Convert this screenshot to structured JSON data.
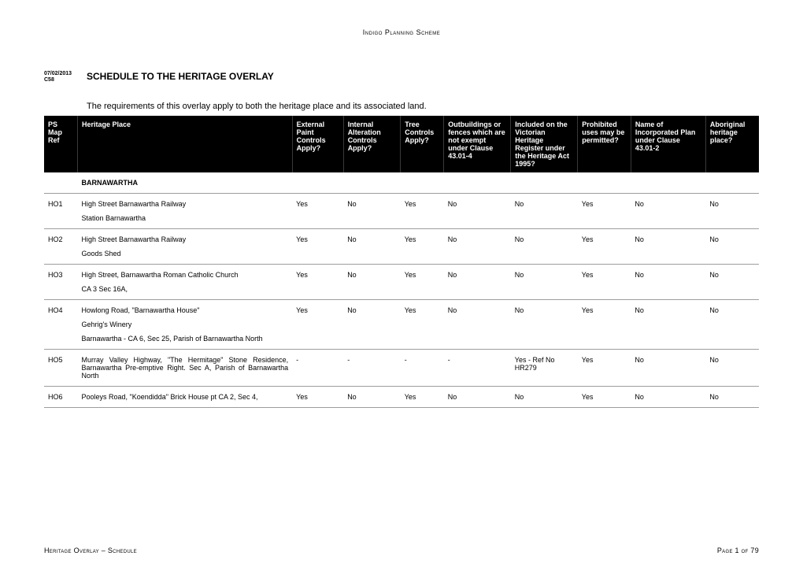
{
  "header": "Indigo Planning Scheme",
  "meta": {
    "date": "07/02/2013",
    "code": "C58"
  },
  "title": "SCHEDULE TO THE HERITAGE OVERLAY",
  "intro": "The requirements of this overlay apply to both the heritage place and its associated land.",
  "columns": [
    "PS Map Ref",
    "Heritage Place",
    "External Paint Controls Apply?",
    "Internal Alteration Controls Apply?",
    "Tree Controls Apply?",
    "Outbuildings or fences which are not exempt under Clause 43.01-4",
    "Included on the Victorian Heritage Register under the Heritage Act 1995?",
    "Prohibited uses may be permitted?",
    "Name of Incorporated Plan under Clause 43.01-2",
    "Aboriginal heritage place?"
  ],
  "section": "BARNAWARTHA",
  "rows": [
    {
      "ref": "HO1",
      "place": "High Street Barnawartha Railway",
      "sub": [
        "Station Barnawartha"
      ],
      "ext": "Yes",
      "int": "No",
      "tree": "Yes",
      "out": "No",
      "reg": "No",
      "proh": "Yes",
      "inc": "No",
      "abor": "No"
    },
    {
      "ref": "HO2",
      "place": "High Street Barnawartha Railway",
      "sub": [
        "Goods Shed"
      ],
      "ext": "Yes",
      "int": "No",
      "tree": "Yes",
      "out": "No",
      "reg": "No",
      "proh": "Yes",
      "inc": "No",
      "abor": "No"
    },
    {
      "ref": "HO3",
      "place": "High Street, Barnawartha Roman Catholic Church",
      "justify": true,
      "sub": [
        "CA 3 Sec 16A,"
      ],
      "ext": "Yes",
      "int": "No",
      "tree": "Yes",
      "out": "No",
      "reg": "No",
      "proh": "Yes",
      "inc": "No",
      "abor": "No"
    },
    {
      "ref": "HO4",
      "place": "Howlong Road, \"Barnawartha House\"",
      "sub": [
        "Gehrig's Winery",
        "Barnawartha - CA 6, Sec 25, Parish of Barnawartha North"
      ],
      "subJustify": [
        false,
        true
      ],
      "ext": "Yes",
      "int": "No",
      "tree": "Yes",
      "out": "No",
      "reg": "No",
      "proh": "Yes",
      "inc": "No",
      "abor": "No"
    },
    {
      "ref": "HO5",
      "place": "Murray Valley Highway, \"The Hermitage\" Stone Residence, Barnawartha Pre-emptive Right. Sec A, Parish of Barnawartha North",
      "justify": true,
      "sub": [],
      "ext": "-",
      "int": "-",
      "tree": "-",
      "out": "-",
      "reg": "Yes - Ref No HR279",
      "proh": "Yes",
      "inc": "No",
      "abor": "No"
    },
    {
      "ref": "HO6",
      "place": "Pooleys Road, \"Koendidda\" Brick House pt CA 2, Sec 4,",
      "justify": true,
      "sub": [],
      "ext": "Yes",
      "int": "No",
      "tree": "Yes",
      "out": "No",
      "reg": "No",
      "proh": "Yes",
      "inc": "No",
      "abor": "No"
    }
  ],
  "footer": {
    "left": "Heritage Overlay – Schedule",
    "right": "Page 1 of 79"
  },
  "colors": {
    "headerBg": "#000000",
    "headerFg": "#ffffff",
    "border": "#9d9d9d"
  }
}
